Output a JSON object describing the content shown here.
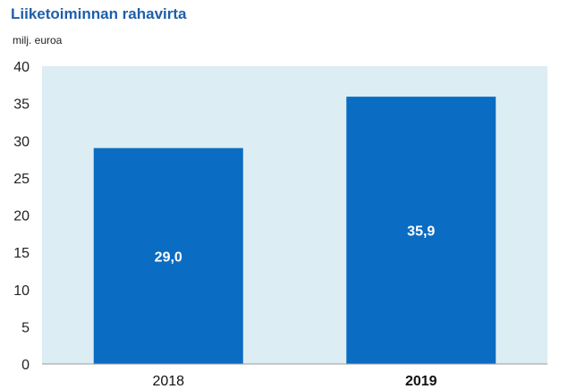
{
  "chart_data": {
    "type": "bar",
    "title": "Liiketoiminnan rahavirta",
    "unit": "milj. euroa",
    "categories": [
      "2018",
      "2019"
    ],
    "category_bold": [
      false,
      true
    ],
    "values": [
      29.0,
      35.9
    ],
    "data_labels": [
      "29,0",
      "35,9"
    ],
    "ylim": [
      0,
      40
    ],
    "yticks": [
      0,
      5,
      10,
      15,
      20,
      25,
      30,
      35,
      40
    ],
    "grid": false,
    "legend": "none",
    "colors": {
      "bar": "#0a6cc2",
      "plot_background": "#dcedf3",
      "title": "#1f5fa8"
    }
  }
}
